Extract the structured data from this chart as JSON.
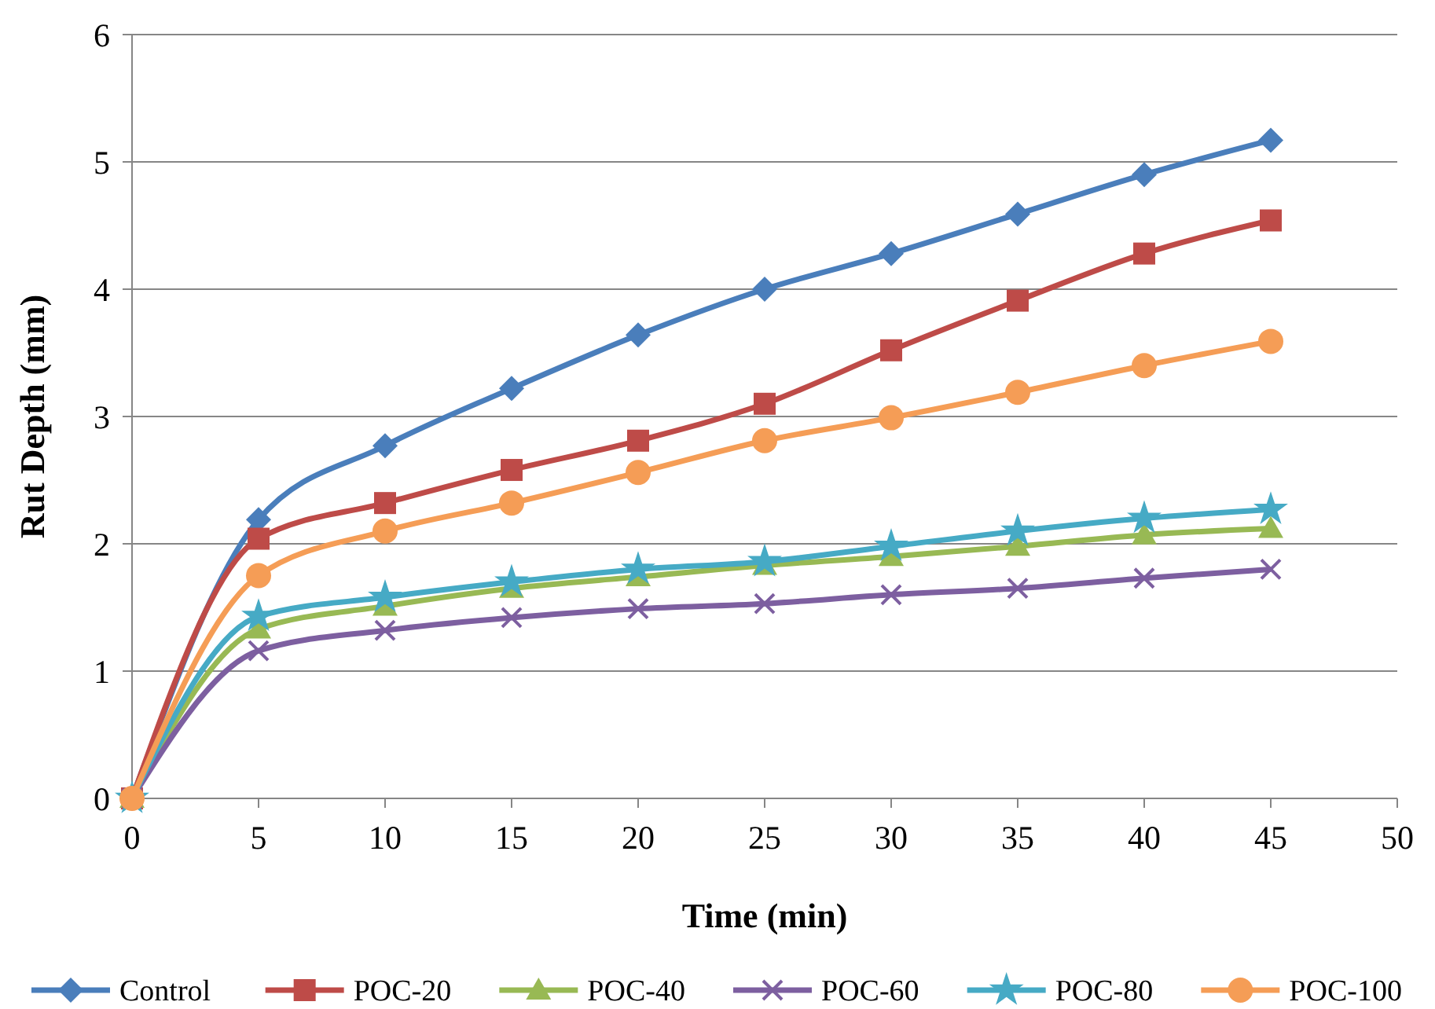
{
  "chart_data": {
    "type": "line",
    "xlabel": "Time (min)",
    "ylabel": "Rut Depth (mm)",
    "x": [
      0,
      5,
      10,
      15,
      20,
      25,
      30,
      35,
      40,
      45
    ],
    "xlim": [
      0,
      50
    ],
    "xticks": [
      0,
      5,
      10,
      15,
      20,
      25,
      30,
      35,
      40,
      45,
      50
    ],
    "ylim": [
      0,
      6
    ],
    "yticks": [
      0,
      1,
      2,
      3,
      4,
      5,
      6
    ],
    "grid": "y",
    "legend": "bottom",
    "series": [
      {
        "name": "Control",
        "color": "#4a7ebb",
        "marker": "diamond",
        "values": [
          0,
          2.19,
          2.77,
          3.22,
          3.64,
          4.0,
          4.28,
          4.59,
          4.9,
          5.17
        ]
      },
      {
        "name": "POC-20",
        "color": "#be4b48",
        "marker": "square",
        "values": [
          0,
          2.04,
          2.32,
          2.58,
          2.81,
          3.1,
          3.52,
          3.91,
          4.28,
          4.54
        ]
      },
      {
        "name": "POC-40",
        "color": "#98b954",
        "marker": "triangle",
        "values": [
          0,
          1.33,
          1.51,
          1.65,
          1.74,
          1.83,
          1.9,
          1.98,
          2.07,
          2.12
        ]
      },
      {
        "name": "POC-60",
        "color": "#7d5fa0",
        "marker": "cross",
        "values": [
          0,
          1.16,
          1.32,
          1.42,
          1.49,
          1.53,
          1.6,
          1.65,
          1.73,
          1.8
        ]
      },
      {
        "name": "POC-80",
        "color": "#46aac5",
        "marker": "star",
        "values": [
          0,
          1.43,
          1.58,
          1.7,
          1.8,
          1.86,
          1.98,
          2.1,
          2.2,
          2.27
        ]
      },
      {
        "name": "POC-100",
        "color": "#f59d56",
        "marker": "circle",
        "values": [
          0,
          1.75,
          2.1,
          2.32,
          2.56,
          2.81,
          2.99,
          3.19,
          3.4,
          3.59
        ]
      }
    ]
  }
}
